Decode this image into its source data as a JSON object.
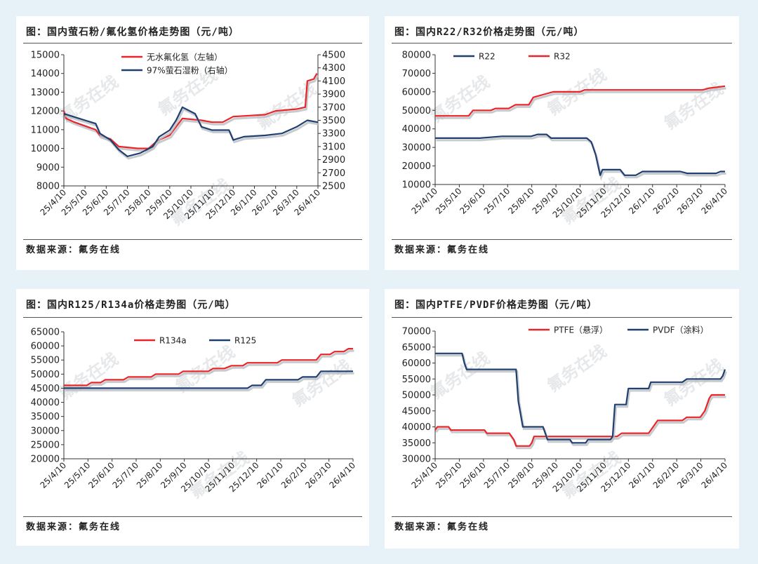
{
  "watermark": "氟务在线",
  "chart_data": [
    {
      "type": "line",
      "title": "图：国内萤石粉/氟化氢价格走势图（元/吨）",
      "source": "数据来源：氟务在线",
      "categories": [
        "25/4/10",
        "25/5/10",
        "25/6/10",
        "25/7/10",
        "25/8/10",
        "25/9/10",
        "25/10/10",
        "25/11/10",
        "25/12/10",
        "26/1/10",
        "26/2/10",
        "26/3/10",
        "26/4/10"
      ],
      "ylim": [
        8000,
        15000
      ],
      "yticks": [
        8000,
        9000,
        10000,
        11000,
        12000,
        13000,
        14000,
        15000
      ],
      "y2lim": [
        2500,
        4500
      ],
      "y2ticks": [
        2500,
        2700,
        2900,
        3100,
        3300,
        3500,
        3700,
        3900,
        4100,
        4300,
        4500
      ],
      "legend": "top-left",
      "series": [
        {
          "name": "无水氟化氢（左轴）",
          "color": "#e8262a",
          "axis": "left",
          "points": [
            [
              0,
              12000
            ],
            [
              0.1,
              11600
            ],
            [
              0.5,
              11400
            ],
            [
              1.5,
              11000
            ],
            [
              1.7,
              10700
            ],
            [
              2.2,
              10500
            ],
            [
              2.6,
              10100
            ],
            [
              3.5,
              10000
            ],
            [
              4.0,
              10000
            ],
            [
              4.4,
              10400
            ],
            [
              5.0,
              10700
            ],
            [
              5.6,
              11600
            ],
            [
              6.5,
              11500
            ],
            [
              7.0,
              11400
            ],
            [
              7.5,
              11400
            ],
            [
              8.0,
              11700
            ],
            [
              9.5,
              11800
            ],
            [
              10.0,
              12000
            ],
            [
              11.0,
              12100
            ],
            [
              11.4,
              12200
            ],
            [
              11.5,
              13600
            ],
            [
              11.8,
              13700
            ],
            [
              11.95,
              14000
            ]
          ]
        },
        {
          "name": "97%萤石湿粉（右轴）",
          "color": "#1f3f6e",
          "axis": "right",
          "points": [
            [
              0,
              3600
            ],
            [
              0.5,
              3550
            ],
            [
              1.0,
              3500
            ],
            [
              1.5,
              3450
            ],
            [
              1.7,
              3300
            ],
            [
              2.2,
              3200
            ],
            [
              2.6,
              3050
            ],
            [
              3.0,
              2950
            ],
            [
              3.6,
              3000
            ],
            [
              4.2,
              3100
            ],
            [
              4.5,
              3250
            ],
            [
              5.0,
              3350
            ],
            [
              5.3,
              3500
            ],
            [
              5.6,
              3700
            ],
            [
              6.2,
              3600
            ],
            [
              6.5,
              3400
            ],
            [
              7.0,
              3350
            ],
            [
              7.8,
              3350
            ],
            [
              8.0,
              3200
            ],
            [
              8.5,
              3250
            ],
            [
              9.5,
              3270
            ],
            [
              10.3,
              3300
            ],
            [
              11.0,
              3400
            ],
            [
              11.5,
              3500
            ],
            [
              12.0,
              3470
            ]
          ]
        }
      ]
    },
    {
      "type": "line",
      "title": "图：国内R22/R32价格走势图（元/吨）",
      "source": "数据来源：氟务在线",
      "categories": [
        "25/4/10",
        "25/5/10",
        "25/6/10",
        "25/7/10",
        "25/8/10",
        "25/9/10",
        "25/10/10",
        "25/11/10",
        "25/12/10",
        "26/1/10",
        "26/2/10",
        "26/3/10",
        "26/4/10"
      ],
      "ylim": [
        10000,
        80000
      ],
      "yticks": [
        10000,
        20000,
        30000,
        40000,
        50000,
        60000,
        70000,
        80000
      ],
      "legend": "top",
      "series": [
        {
          "name": "R22",
          "color": "#1f3f6e",
          "axis": "left",
          "points": [
            [
              0,
              35000
            ],
            [
              2.0,
              35000
            ],
            [
              3.0,
              36000
            ],
            [
              4.3,
              36000
            ],
            [
              4.6,
              37000
            ],
            [
              5.0,
              37000
            ],
            [
              5.2,
              35000
            ],
            [
              6.8,
              35000
            ],
            [
              7.0,
              33000
            ],
            [
              7.2,
              26000
            ],
            [
              7.4,
              15000
            ],
            [
              7.5,
              18000
            ],
            [
              8.3,
              18000
            ],
            [
              8.5,
              15000
            ],
            [
              9.0,
              15000
            ],
            [
              9.3,
              17000
            ],
            [
              11.0,
              17000
            ],
            [
              11.3,
              16000
            ],
            [
              12.0,
              16000
            ],
            [
              12.6,
              16000
            ],
            [
              12.8,
              17000
            ],
            [
              13.0,
              17000
            ]
          ]
        },
        {
          "name": "R32",
          "color": "#e8262a",
          "axis": "left",
          "points": [
            [
              0,
              47000
            ],
            [
              1.5,
              47000
            ],
            [
              1.7,
              50000
            ],
            [
              2.5,
              50000
            ],
            [
              2.7,
              51000
            ],
            [
              3.3,
              51000
            ],
            [
              3.6,
              53000
            ],
            [
              4.2,
              53000
            ],
            [
              4.4,
              57000
            ],
            [
              5.0,
              59000
            ],
            [
              5.3,
              60000
            ],
            [
              6.5,
              60000
            ],
            [
              6.7,
              61000
            ],
            [
              12.0,
              61000
            ],
            [
              12.3,
              62000
            ],
            [
              13.0,
              63000
            ]
          ]
        }
      ]
    },
    {
      "type": "line",
      "title": "图：国内R125/R134a价格走势图（元/吨）",
      "source": "数据来源：氟务在线",
      "categories": [
        "25/4/10",
        "25/5/10",
        "25/6/10",
        "25/7/10",
        "25/8/10",
        "25/9/10",
        "25/10/10",
        "25/11/10",
        "25/12/10",
        "26/1/10",
        "26/2/10",
        "26/3/10",
        "26/4/10"
      ],
      "ylim": [
        20000,
        65000
      ],
      "yticks": [
        20000,
        25000,
        30000,
        35000,
        40000,
        45000,
        50000,
        55000,
        60000,
        65000
      ],
      "legend": "top",
      "series": [
        {
          "name": "R134a",
          "color": "#e8262a",
          "axis": "left",
          "points": [
            [
              0,
              46000
            ],
            [
              1.0,
              46000
            ],
            [
              1.2,
              47000
            ],
            [
              1.6,
              47000
            ],
            [
              1.8,
              48000
            ],
            [
              2.6,
              48000
            ],
            [
              2.8,
              49000
            ],
            [
              3.8,
              49000
            ],
            [
              4.0,
              50000
            ],
            [
              5.0,
              50000
            ],
            [
              5.2,
              51000
            ],
            [
              6.3,
              51000
            ],
            [
              6.5,
              52000
            ],
            [
              7.0,
              52000
            ],
            [
              7.3,
              53000
            ],
            [
              7.8,
              53000
            ],
            [
              8.0,
              54000
            ],
            [
              9.3,
              54000
            ],
            [
              9.5,
              55000
            ],
            [
              11.0,
              55000
            ],
            [
              11.2,
              57000
            ],
            [
              11.6,
              57000
            ],
            [
              11.8,
              58000
            ],
            [
              12.2,
              58000
            ],
            [
              12.4,
              59000
            ],
            [
              12.6,
              59000
            ]
          ]
        },
        {
          "name": "R125",
          "color": "#1f3f6e",
          "axis": "left",
          "points": [
            [
              0,
              45000
            ],
            [
              8.0,
              45000
            ],
            [
              8.2,
              46000
            ],
            [
              8.6,
              46000
            ],
            [
              8.8,
              48000
            ],
            [
              10.2,
              48000
            ],
            [
              10.4,
              49000
            ],
            [
              11.0,
              49000
            ],
            [
              11.2,
              51000
            ],
            [
              12.6,
              51000
            ]
          ]
        }
      ]
    },
    {
      "type": "line",
      "title": "图：国内PTFE/PVDF价格走势图（元/吨）",
      "source": "数据来源：氟务在线",
      "categories": [
        "25/4/10",
        "25/5/10",
        "25/6/10",
        "25/7/10",
        "25/8/10",
        "25/9/10",
        "25/10/10",
        "25/11/10",
        "25/12/10",
        "26/1/10",
        "26/2/10",
        "26/3/10",
        "26/4/10"
      ],
      "ylim": [
        30000,
        70000
      ],
      "yticks": [
        30000,
        35000,
        40000,
        45000,
        50000,
        55000,
        60000,
        65000,
        70000
      ],
      "legend": "top",
      "series": [
        {
          "name": "PTFE（悬浮）",
          "color": "#e8262a",
          "axis": "left",
          "points": [
            [
              0,
              39000
            ],
            [
              0.1,
              40000
            ],
            [
              0.6,
              40000
            ],
            [
              0.7,
              39000
            ],
            [
              2.2,
              39000
            ],
            [
              2.3,
              38000
            ],
            [
              3.3,
              38000
            ],
            [
              3.5,
              36000
            ],
            [
              3.6,
              34000
            ],
            [
              4.2,
              34000
            ],
            [
              4.3,
              35000
            ],
            [
              4.4,
              37000
            ],
            [
              5.5,
              37000
            ],
            [
              8.1,
              37000
            ],
            [
              8.3,
              38000
            ],
            [
              9.5,
              38000
            ],
            [
              9.7,
              40000
            ],
            [
              9.9,
              42000
            ],
            [
              11.0,
              42000
            ],
            [
              11.2,
              43000
            ],
            [
              11.8,
              43000
            ],
            [
              12.0,
              45000
            ],
            [
              12.2,
              49000
            ],
            [
              12.3,
              50000
            ],
            [
              12.9,
              50000
            ]
          ]
        },
        {
          "name": "PVDF（涂料）",
          "color": "#1f3f6e",
          "axis": "left",
          "points": [
            [
              0,
              63000
            ],
            [
              1.2,
              63000
            ],
            [
              1.3,
              60000
            ],
            [
              1.4,
              58000
            ],
            [
              3.6,
              58000
            ],
            [
              3.7,
              48000
            ],
            [
              3.8,
              44000
            ],
            [
              3.9,
              40000
            ],
            [
              4.8,
              40000
            ],
            [
              4.9,
              38000
            ],
            [
              5.0,
              36000
            ],
            [
              6.0,
              36000
            ],
            [
              6.1,
              35000
            ],
            [
              6.7,
              35000
            ],
            [
              6.8,
              36000
            ],
            [
              7.8,
              36000
            ],
            [
              7.9,
              37000
            ],
            [
              8.0,
              47000
            ],
            [
              8.5,
              47000
            ],
            [
              8.6,
              52000
            ],
            [
              9.5,
              52000
            ],
            [
              9.6,
              54000
            ],
            [
              11.0,
              54000
            ],
            [
              11.2,
              55000
            ],
            [
              12.7,
              55000
            ],
            [
              12.8,
              56000
            ],
            [
              12.9,
              58000
            ]
          ]
        }
      ]
    }
  ]
}
